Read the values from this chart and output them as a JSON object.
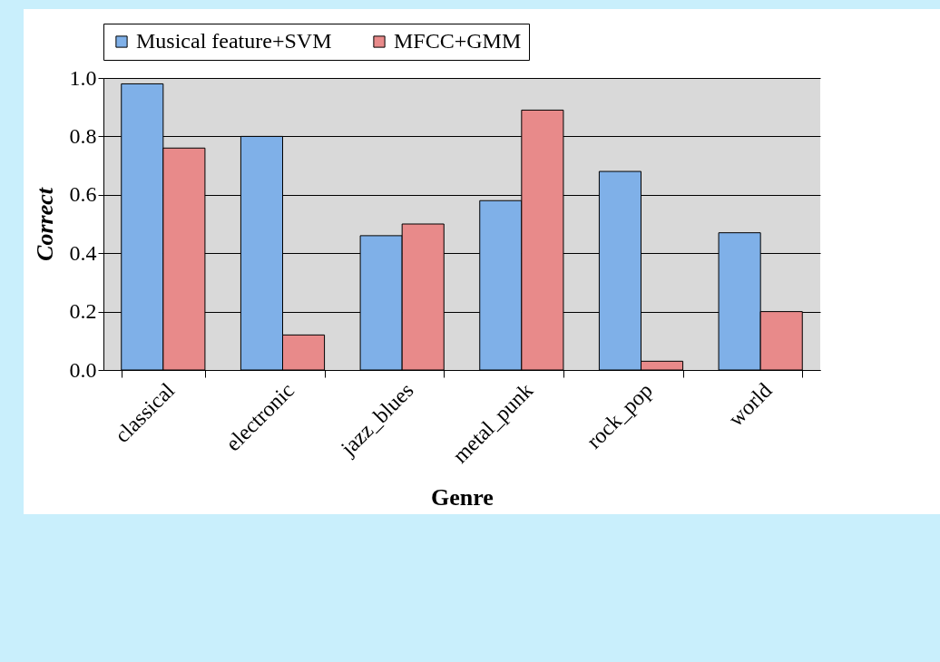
{
  "chart_data": {
    "type": "bar",
    "xlabel": "Genre",
    "ylabel": "Correct",
    "categories": [
      "classical",
      "electronic",
      "jazz_blues",
      "metal_punk",
      "rock_pop",
      "world"
    ],
    "series": [
      {
        "name": "Musical feature+SVM",
        "color": "#7fb0e8",
        "values": [
          0.98,
          0.8,
          0.46,
          0.58,
          0.68,
          0.47
        ]
      },
      {
        "name": "MFCC+GMM",
        "color": "#e88a8a",
        "values": [
          0.76,
          0.12,
          0.5,
          0.89,
          0.03,
          0.2
        ]
      }
    ],
    "ylim": [
      0,
      1
    ],
    "yticks": [
      {
        "value": 0,
        "label": "0.0"
      },
      0.2,
      0.4,
      0.6,
      0.8,
      {
        "value": 1,
        "label": "1.0"
      }
    ],
    "grid": "y",
    "legend": "top"
  }
}
